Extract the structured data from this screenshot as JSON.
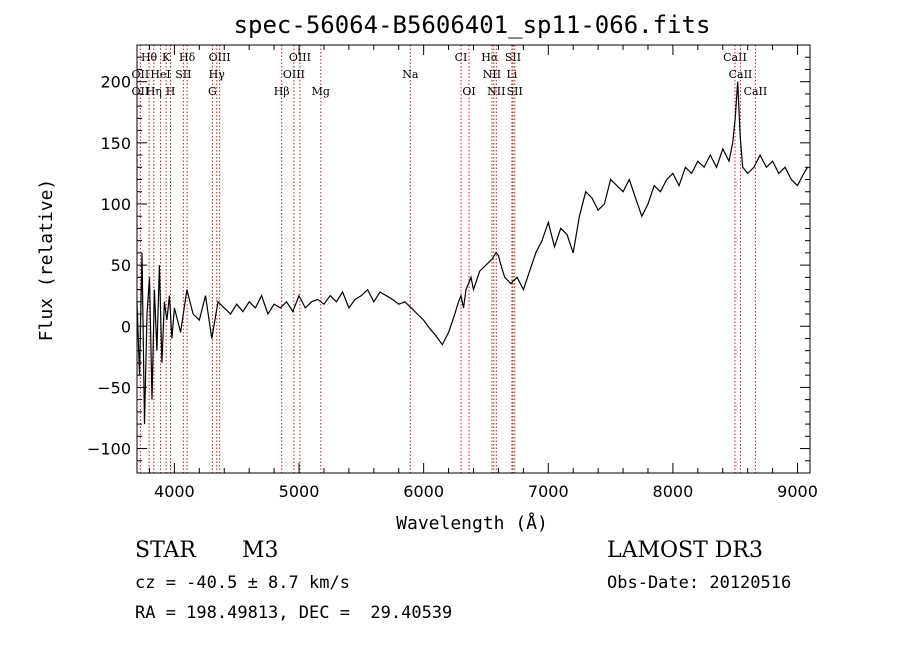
{
  "chart_data": {
    "type": "line",
    "title": "spec-56064-B5606401_sp11-066.fits",
    "xlabel": "Wavelength (Å)",
    "ylabel": "Flux (relative)",
    "xlim": [
      3700,
      9100
    ],
    "ylim": [
      -120,
      230
    ],
    "xticks": [
      4000,
      5000,
      6000,
      7000,
      8000,
      9000
    ],
    "yticks": [
      -100,
      -50,
      0,
      50,
      100,
      150,
      200
    ],
    "series": [
      {
        "x": [
          3700,
          3720,
          3740,
          3760,
          3780,
          3800,
          3820,
          3840,
          3860,
          3880,
          3900,
          3920,
          3940,
          3960,
          3980,
          4000,
          4050,
          4100,
          4150,
          4200,
          4250,
          4300,
          4350,
          4400,
          4450,
          4500,
          4550,
          4600,
          4650,
          4700,
          4750,
          4800,
          4850,
          4900,
          4950,
          5000,
          5050,
          5100,
          5150,
          5200,
          5250,
          5300,
          5350,
          5400,
          5450,
          5500,
          5550,
          5600,
          5650,
          5700,
          5750,
          5800,
          5850,
          5900,
          5950,
          6000,
          6050,
          6100,
          6150,
          6200,
          6250,
          6280,
          6300,
          6320,
          6340,
          6360,
          6380,
          6400,
          6450,
          6500,
          6550,
          6580,
          6600,
          6620,
          6650,
          6700,
          6750,
          6800,
          6850,
          6900,
          6950,
          7000,
          7050,
          7100,
          7150,
          7200,
          7250,
          7300,
          7350,
          7400,
          7450,
          7500,
          7550,
          7600,
          7650,
          7700,
          7750,
          7800,
          7850,
          7900,
          7950,
          8000,
          8050,
          8100,
          8150,
          8200,
          8250,
          8300,
          8350,
          8400,
          8450,
          8480,
          8500,
          8520,
          8540,
          8560,
          8600,
          8650,
          8700,
          8750,
          8800,
          8850,
          8900,
          8950,
          9000,
          9050,
          9080
        ],
        "y": [
          20,
          -40,
          60,
          -80,
          10,
          40,
          -60,
          30,
          -20,
          50,
          -30,
          20,
          5,
          25,
          -10,
          15,
          -5,
          30,
          10,
          5,
          25,
          -10,
          20,
          15,
          10,
          18,
          12,
          20,
          15,
          25,
          10,
          18,
          15,
          20,
          12,
          25,
          15,
          20,
          22,
          18,
          25,
          20,
          28,
          15,
          22,
          25,
          30,
          20,
          28,
          25,
          22,
          18,
          20,
          15,
          10,
          5,
          -2,
          -8,
          -15,
          -5,
          10,
          20,
          25,
          15,
          30,
          35,
          40,
          30,
          45,
          50,
          55,
          60,
          58,
          50,
          40,
          35,
          40,
          30,
          45,
          60,
          70,
          85,
          65,
          80,
          75,
          60,
          90,
          110,
          105,
          95,
          100,
          120,
          115,
          110,
          120,
          105,
          90,
          100,
          115,
          110,
          120,
          125,
          115,
          130,
          125,
          135,
          130,
          140,
          130,
          145,
          135,
          150,
          170,
          200,
          155,
          130,
          125,
          130,
          140,
          130,
          135,
          125,
          130,
          120,
          115,
          125,
          130
        ]
      }
    ],
    "lines": [
      {
        "label": "Hθ",
        "wl": 3797,
        "row": 1,
        "dx": 0
      },
      {
        "label": "K",
        "wl": 3934,
        "row": 1,
        "dx": 0
      },
      {
        "label": "Hδ",
        "wl": 4102,
        "row": 1,
        "dx": 0
      },
      {
        "label": "OIII",
        "wl": 4363,
        "row": 1,
        "dx": 0
      },
      {
        "label": "OIII",
        "wl": 5007,
        "row": 1,
        "dx": 0
      },
      {
        "label": "CI",
        "wl": 6300,
        "row": 1,
        "dx": 0
      },
      {
        "label": "Hα",
        "wl": 6563,
        "row": 1,
        "dx": -4
      },
      {
        "label": "SII",
        "wl": 6717,
        "row": 1,
        "dx": 0
      },
      {
        "label": "CaII",
        "wl": 8498,
        "row": 1,
        "dx": 0
      },
      {
        "label": "OII",
        "wl": 3727,
        "row": 2,
        "dx": 0
      },
      {
        "label": "HeI",
        "wl": 3889,
        "row": 2,
        "dx": 0
      },
      {
        "label": "SII",
        "wl": 4072,
        "row": 2,
        "dx": 0
      },
      {
        "label": "Hγ",
        "wl": 4340,
        "row": 2,
        "dx": 0
      },
      {
        "label": "OIII",
        "wl": 4959,
        "row": 2,
        "dx": 0
      },
      {
        "label": "Na",
        "wl": 5893,
        "row": 2,
        "dx": 0
      },
      {
        "label": "NII",
        "wl": 6548,
        "row": 2,
        "dx": 0
      },
      {
        "label": "Li",
        "wl": 6708,
        "row": 2,
        "dx": 0
      },
      {
        "label": "CaII",
        "wl": 8542,
        "row": 2,
        "dx": 0
      },
      {
        "label": "OII",
        "wl": 3727,
        "row": 3,
        "dx": 0
      },
      {
        "label": "Hη",
        "wl": 3835,
        "row": 3,
        "dx": 0
      },
      {
        "label": "H",
        "wl": 3969,
        "row": 3,
        "dx": 0
      },
      {
        "label": "G",
        "wl": 4305,
        "row": 3,
        "dx": 0
      },
      {
        "label": "Hβ",
        "wl": 4861,
        "row": 3,
        "dx": 0
      },
      {
        "label": "Mg",
        "wl": 5175,
        "row": 3,
        "dx": 0
      },
      {
        "label": "OI",
        "wl": 6364,
        "row": 3,
        "dx": 0
      },
      {
        "label": "NII",
        "wl": 6583,
        "row": 3,
        "dx": 0
      },
      {
        "label": "SII",
        "wl": 6731,
        "row": 3,
        "dx": 0
      },
      {
        "label": "CaII",
        "wl": 8662,
        "row": 3,
        "dx": 0
      }
    ],
    "line_color": "#b22222"
  },
  "info": {
    "star_class": "STAR",
    "star_subclass": "M3",
    "cz": "cz = -40.5 ± 8.7 km/s",
    "radec": "RA = 198.49813, DEC =  29.40539",
    "survey": "LAMOST DR3",
    "obs_date": "Obs-Date: 20120516"
  }
}
